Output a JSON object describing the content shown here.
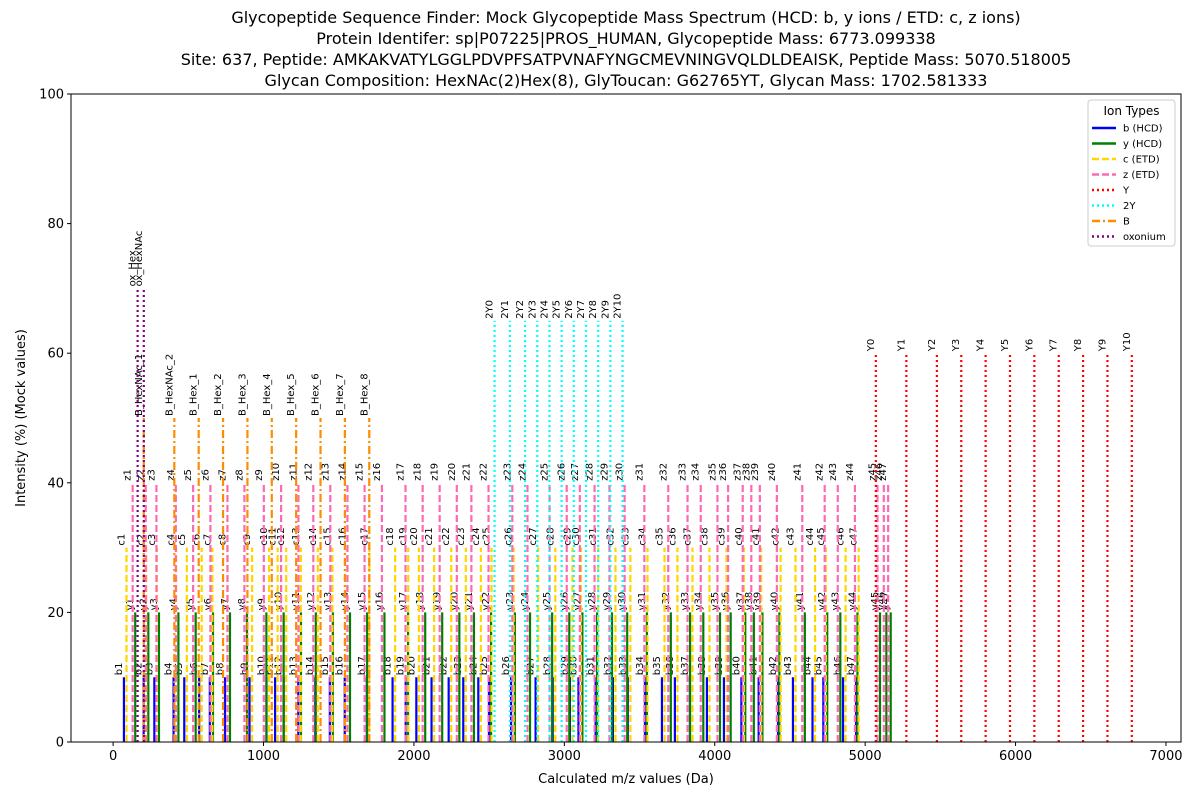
{
  "colors": {
    "b": "#0000ff",
    "y": "#008000",
    "c": "#ffd700",
    "z": "#ff69b4",
    "Y": "#ff0000",
    "2Y": "#00ffff",
    "B": "#ff8c00",
    "oxonium": "#800080"
  },
  "chart_data": {
    "type": "bar",
    "title_lines": [
      "Glycopeptide Sequence Finder: Mock Glycopeptide Mass Spectrum (HCD: b, y ions / ETD: c, z ions)",
      "Protein Identifer: sp|P07225|PROS_HUMAN, Glycopeptide Mass: 6773.099338",
      "Site: 637, Peptide: AMKAKVATYLGGLPDVPFSATPVNAFYNGCMEVNINGVQLDLDEAISK, Peptide Mass: 5070.518005",
      "Glycan Composition: HexNAc(2)Hex(8), GlyToucan: G62765YT, Glycan Mass: 1702.581333"
    ],
    "xlabel": "Calculated m/z values (Da)",
    "ylabel": "Intensity (%) (Mock values)",
    "xlim": [
      -280,
      7100
    ],
    "ylim": [
      0,
      100
    ],
    "xticks": [
      0,
      1000,
      2000,
      3000,
      4000,
      5000,
      6000,
      7000
    ],
    "yticks": [
      0,
      20,
      40,
      60,
      80,
      100
    ],
    "legend": {
      "title": "Ion Types",
      "placement": "top-right",
      "entries": [
        {
          "key": "b",
          "label": "b (HCD)",
          "dash": "solid"
        },
        {
          "key": "y",
          "label": "y (HCD)",
          "dash": "solid"
        },
        {
          "key": "c",
          "label": "c (ETD)",
          "dash": "dashed"
        },
        {
          "key": "z",
          "label": "z (ETD)",
          "dash": "dashed"
        },
        {
          "key": "Y",
          "label": "Y",
          "dash": "dotted"
        },
        {
          "key": "2Y",
          "label": "2Y",
          "dash": "dotted"
        },
        {
          "key": "B",
          "label": "B",
          "dash": "dashdot"
        },
        {
          "key": "oxonium",
          "label": "oxonium",
          "dash": "dotted"
        }
      ]
    },
    "series": [
      {
        "key": "b",
        "intensity": 10,
        "dash": "solid",
        "labels": [
          "b1",
          "b2",
          "b3",
          "b4",
          "b5",
          "b6",
          "b7",
          "b8",
          "b9",
          "b10",
          "b11",
          "b12",
          "b13",
          "b14",
          "b15",
          "b16",
          "b17",
          "b18",
          "b19",
          "b20",
          "b21",
          "b22",
          "b23",
          "b24",
          "b25",
          "b26",
          "b27",
          "b28",
          "b29",
          "b30",
          "b31",
          "b32",
          "b33",
          "b34",
          "b35",
          "b36",
          "b37",
          "b38",
          "b39",
          "b40",
          "b41",
          "b42",
          "b43",
          "b44",
          "b45",
          "b46",
          "b47"
        ],
        "mz": [
          72,
          203,
          274,
          402,
          473,
          572,
          643,
          744,
          907,
          1020,
          1077,
          1134,
          1231,
          1344,
          1441,
          1540,
          1687,
          1858,
          1945,
          2016,
          2117,
          2231,
          2328,
          2428,
          2499,
          2646,
          2809,
          2923,
          3037,
          3094,
          3208,
          3323,
          3422,
          3536,
          3649,
          3735,
          3835,
          3948,
          4061,
          4177,
          4292,
          4421,
          4520,
          4650,
          4722,
          4853,
          4940
        ]
      },
      {
        "key": "y",
        "intensity": 20,
        "dash": "solid",
        "labels": [
          "y1",
          "y2",
          "y3",
          "y4",
          "y5",
          "y6",
          "y7",
          "y8",
          "y9",
          "y10",
          "y11",
          "y12",
          "y13",
          "y14",
          "y15",
          "y16",
          "y17",
          "y18",
          "y19",
          "y20",
          "y21",
          "y22",
          "y23",
          "y24",
          "y25",
          "y26",
          "y27",
          "y28",
          "y29",
          "y30",
          "y31",
          "y32",
          "y33",
          "y34",
          "y35",
          "y36",
          "y37",
          "y38",
          "y39",
          "y40",
          "y41",
          "y42",
          "y43",
          "y44",
          "y45",
          "y46",
          "y47"
        ],
        "mz": [
          147,
          234,
          305,
          434,
          549,
          664,
          777,
          890,
          1019,
          1134,
          1249,
          1348,
          1461,
          1575,
          1689,
          1804,
          1961,
          2075,
          2188,
          2302,
          2399,
          2513,
          2671,
          2772,
          2919,
          3033,
          3120,
          3218,
          3317,
          3418,
          3549,
          3708,
          3836,
          3924,
          4035,
          4106,
          4203,
          4260,
          4317,
          4430,
          4599,
          4748,
          4835,
          4949,
          5099,
          5141,
          5170
        ]
      },
      {
        "key": "c",
        "intensity": 30,
        "dash": "dashed",
        "labels": [
          "c1",
          "c2",
          "c3",
          "c4",
          "c5",
          "c6",
          "c7",
          "c8",
          "c9",
          "c10",
          "c11",
          "c12",
          "c13",
          "c14",
          "c15",
          "c16",
          "c17",
          "c18",
          "c19",
          "c20",
          "c21",
          "c22",
          "c23",
          "c24",
          "c25",
          "c26",
          "c27",
          "c28",
          "c29",
          "c30",
          "c31",
          "c32",
          "c33",
          "c34",
          "c35",
          "c36",
          "c37",
          "c38",
          "c39",
          "c40",
          "c41",
          "c42",
          "c43",
          "c44",
          "c45",
          "c46",
          "c47"
        ],
        "mz": [
          89,
          220,
          291,
          419,
          490,
          589,
          660,
          761,
          924,
          1037,
          1094,
          1151,
          1248,
          1361,
          1458,
          1557,
          1704,
          1875,
          1962,
          2033,
          2134,
          2248,
          2345,
          2445,
          2516,
          2663,
          2826,
          2940,
          3054,
          3111,
          3225,
          3340,
          3439,
          3553,
          3666,
          3752,
          3852,
          3965,
          4078,
          4194,
          4309,
          4438,
          4537,
          4667,
          4739,
          4870,
          4957
        ]
      },
      {
        "key": "z",
        "intensity": 40,
        "dash": "dashed",
        "labels": [
          "z1",
          "z2",
          "z3",
          "z4",
          "z5",
          "z6",
          "z7",
          "z8",
          "z9",
          "z10",
          "z11",
          "z12",
          "z13",
          "z14",
          "z15",
          "z16",
          "z17",
          "z18",
          "z19",
          "z20",
          "z21",
          "z22",
          "z23",
          "z24",
          "z25",
          "z26",
          "z27",
          "z28",
          "z29",
          "z30",
          "z31",
          "z32",
          "z33",
          "z34",
          "z35",
          "z36",
          "z37",
          "z38",
          "z39",
          "z40",
          "z41",
          "z42",
          "z43",
          "z44",
          "z45",
          "z46",
          "z47"
        ],
        "mz": [
          130,
          217,
          288,
          417,
          532,
          647,
          760,
          873,
          1002,
          1117,
          1232,
          1331,
          1444,
          1558,
          1672,
          1787,
          1944,
          2058,
          2171,
          2285,
          2382,
          2496,
          2654,
          2755,
          2902,
          3016,
          3103,
          3201,
          3300,
          3401,
          3532,
          3691,
          3819,
          3907,
          4018,
          4089,
          4186,
          4243,
          4300,
          4413,
          4582,
          4731,
          4818,
          4932,
          5082,
          5124,
          5153
        ]
      },
      {
        "key": "Y",
        "intensity": 60,
        "dash": "dotted",
        "labels": [
          "Y0",
          "Y1",
          "Y2",
          "Y3",
          "Y4",
          "Y5",
          "Y6",
          "Y7",
          "Y8",
          "Y9",
          "Y10"
        ],
        "mz": [
          5071,
          5274,
          5477,
          5639,
          5801,
          5963,
          6125,
          6287,
          6449,
          6611,
          6773
        ]
      },
      {
        "key": "2Y",
        "intensity": 65,
        "dash": "dotted",
        "labels": [
          "2Y0",
          "2Y1",
          "2Y2",
          "2Y3",
          "2Y4",
          "2Y5",
          "2Y6",
          "2Y7",
          "2Y8",
          "2Y9",
          "2Y10"
        ],
        "mz": [
          2536,
          2638,
          2739,
          2820,
          2901,
          2982,
          3063,
          3144,
          3225,
          3306,
          3387
        ]
      },
      {
        "key": "B",
        "intensity": 50,
        "dash": "dashdot",
        "labels": [
          "B_HexNAc_1",
          "B_HexNAc_2",
          "B_Hex_1",
          "B_Hex_2",
          "B_Hex_3",
          "B_Hex_4",
          "B_Hex_5",
          "B_Hex_6",
          "B_Hex_7",
          "B_Hex_8"
        ],
        "mz": [
          204,
          407,
          569,
          731,
          893,
          1055,
          1217,
          1379,
          1541,
          1703
        ]
      },
      {
        "key": "oxonium",
        "intensity": 70,
        "dash": "dotted",
        "labels": [
          "ox_Hex",
          "ox_HexNAc"
        ],
        "mz": [
          163,
          204
        ]
      }
    ]
  }
}
